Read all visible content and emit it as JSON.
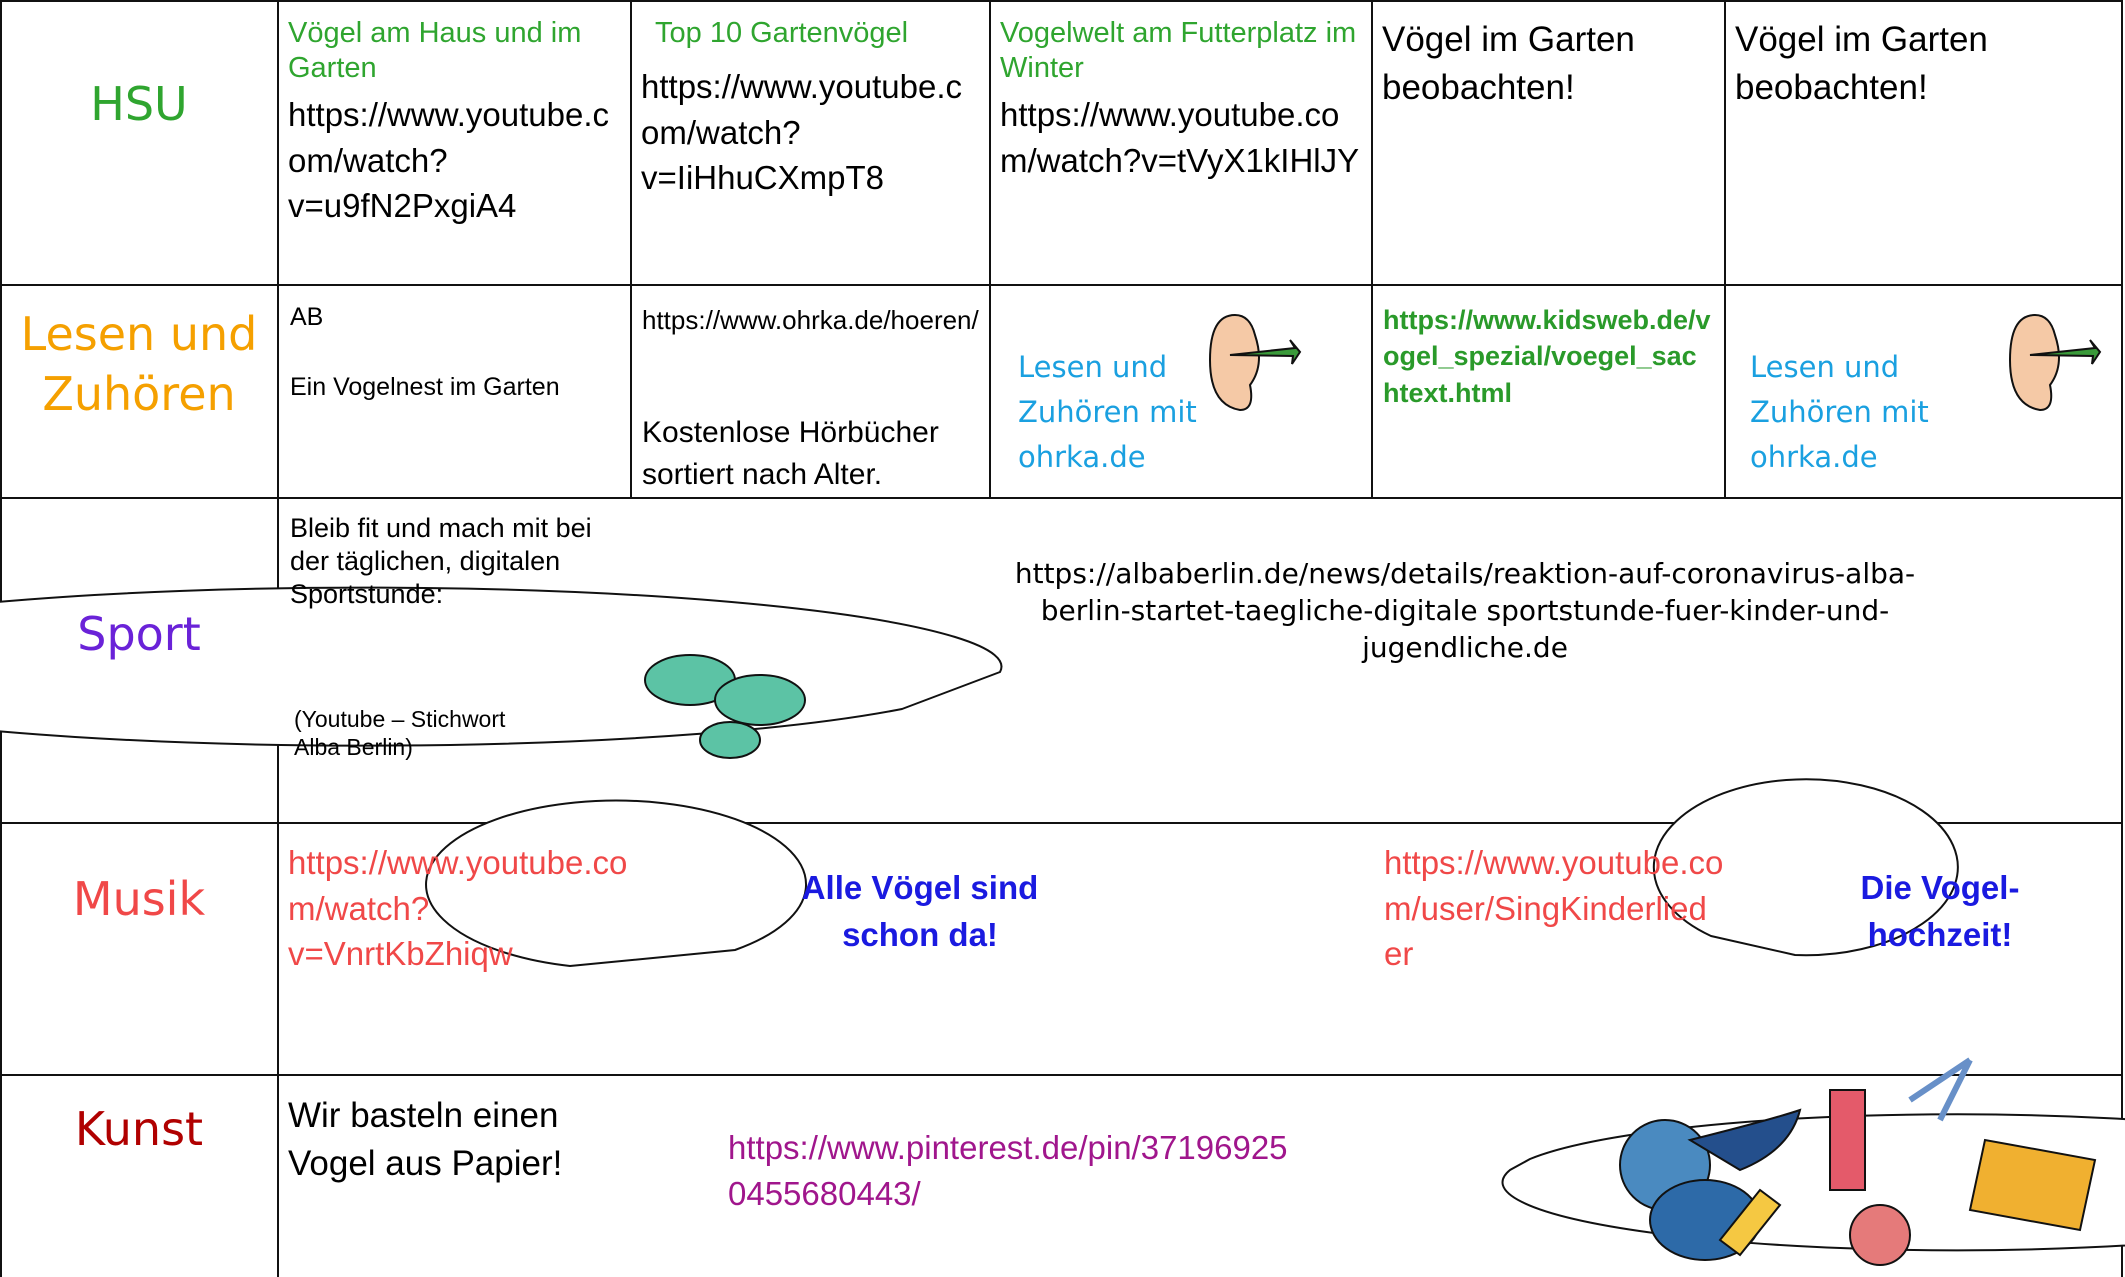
{
  "rows": [
    {
      "subject": "HSU",
      "cells": [
        {
          "title": "Vögel am Haus und im Garten",
          "link": "https://www.youtube.com/watch?v=u9fN2PxgiA4"
        },
        {
          "title": "Top 10 Gartenvögel",
          "link": "https://www.youtube.com/watch?v=IiHhuCXmpT8"
        },
        {
          "title": "Vogelwelt am Futterplatz im Winter",
          "link": "https://www.youtube.com/watch?v=tVyX1kIHlJY"
        },
        {
          "text": "Vögel im Garten beobachten!"
        },
        {
          "text": "Vögel im Garten beobachten!"
        }
      ]
    },
    {
      "subject": "Lesen und Zuhören",
      "cells": [
        {
          "label": "AB",
          "text": "Ein Vogelnest im Garten"
        },
        {
          "link": "https://www.ohrka.de/hoeren/",
          "text": "Kostenlose Hörbücher sortiert nach Alter."
        },
        {
          "text": "Lesen und Zuhören mit ohrka.de"
        },
        {
          "link": "https://www.kidsweb.de/vogel_spezial/voegel_sachtext.html"
        },
        {
          "text": "Lesen und Zuhören mit ohrka.de"
        }
      ]
    },
    {
      "subject": "Sport",
      "text": "Bleib fit und mach mit bei der täglichen, digitalen Sportstunde:",
      "note": "(Youtube – Stichwort Alba Berlin)",
      "bubble": "https://albaberlin.de/news/details/reaktion-auf-coronavirus-alba-berlin-startet-taegliche-digitale sportstunde-fuer-kinder-und-jugendliche.de"
    },
    {
      "subject": "Musik",
      "items": [
        {
          "link": "https://www.youtube.com/watch?v=VnrtKbZhiqw",
          "bubble": "Alle Vögel sind schon da!"
        },
        {
          "link": "https://www.youtube.com/user/SingKinderlieder",
          "bubble": "Die Vogel-hochzeit!"
        }
      ]
    },
    {
      "subject": "Kunst",
      "text": "Wir basteln einen Vogel aus Papier!",
      "bubble": "https://www.pinterest.de/pin/371969250455680443/"
    }
  ]
}
